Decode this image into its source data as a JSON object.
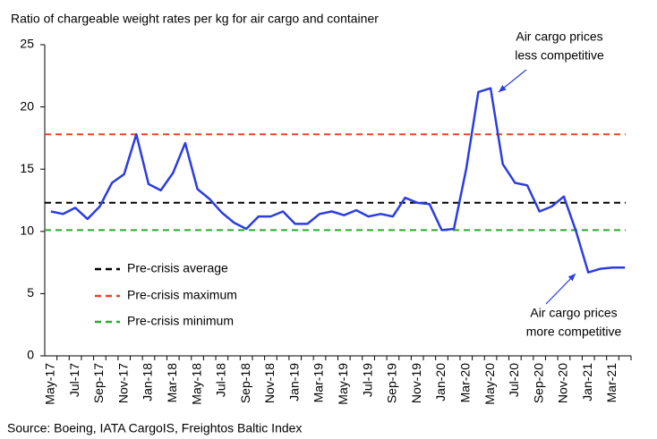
{
  "chart_data": {
    "type": "line",
    "title": "Ratio of chargeable weight rates per kg for air cargo and container",
    "source": "Source: Boeing, IATA CargoIS, Freightos Baltic Index",
    "categories": [
      "May-17",
      null,
      "Jul-17",
      null,
      "Sep-17",
      null,
      "Nov-17",
      null,
      "Jan-18",
      null,
      "Mar-18",
      null,
      "May-18",
      null,
      "Jul-18",
      null,
      "Sep-18",
      null,
      "Nov-18",
      null,
      "Jan-19",
      null,
      "Mar-19",
      null,
      "May-19",
      null,
      "Jul-19",
      null,
      "Sep-19",
      null,
      "Nov-19",
      null,
      "Jan-20",
      null,
      "Mar-20",
      null,
      "May-20",
      null,
      "Jul-20",
      null,
      "Sep-20",
      null,
      "Nov-20",
      null,
      "Jan-21",
      null,
      "Mar-21",
      null
    ],
    "series": [
      {
        "color": "#2b3de0",
        "values": [
          11.6,
          11.4,
          11.9,
          11.0,
          12.0,
          13.9,
          14.6,
          17.8,
          13.8,
          13.3,
          14.7,
          17.1,
          13.4,
          12.6,
          11.5,
          10.7,
          10.2,
          11.2,
          11.2,
          11.6,
          10.6,
          10.6,
          11.4,
          11.6,
          11.3,
          11.7,
          11.2,
          11.4,
          11.2,
          12.7,
          12.3,
          12.2,
          10.1,
          10.2,
          15.0,
          21.2,
          21.5,
          15.4,
          13.9,
          13.7,
          11.6,
          12.0,
          12.8,
          10.0,
          6.7,
          7.0,
          7.1,
          7.1
        ]
      }
    ],
    "reference_lines": [
      {
        "name": "Pre-crisis average",
        "value": 12.3,
        "color": "#000000"
      },
      {
        "name": "Pre-crisis maximum",
        "value": 17.8,
        "color": "#e8432d"
      },
      {
        "name": "Pre-crisis minimum",
        "value": 10.1,
        "color": "#2ea82e"
      }
    ],
    "annotations": [
      {
        "lines": [
          "Air cargo prices",
          "less competitive"
        ],
        "color": "#2b3de0"
      },
      {
        "lines": [
          "Air cargo prices",
          "more competitive"
        ],
        "color": "#2b3de0"
      }
    ],
    "ylim": [
      0,
      25
    ],
    "yticks": [
      0,
      5,
      10,
      15,
      20,
      25
    ]
  }
}
